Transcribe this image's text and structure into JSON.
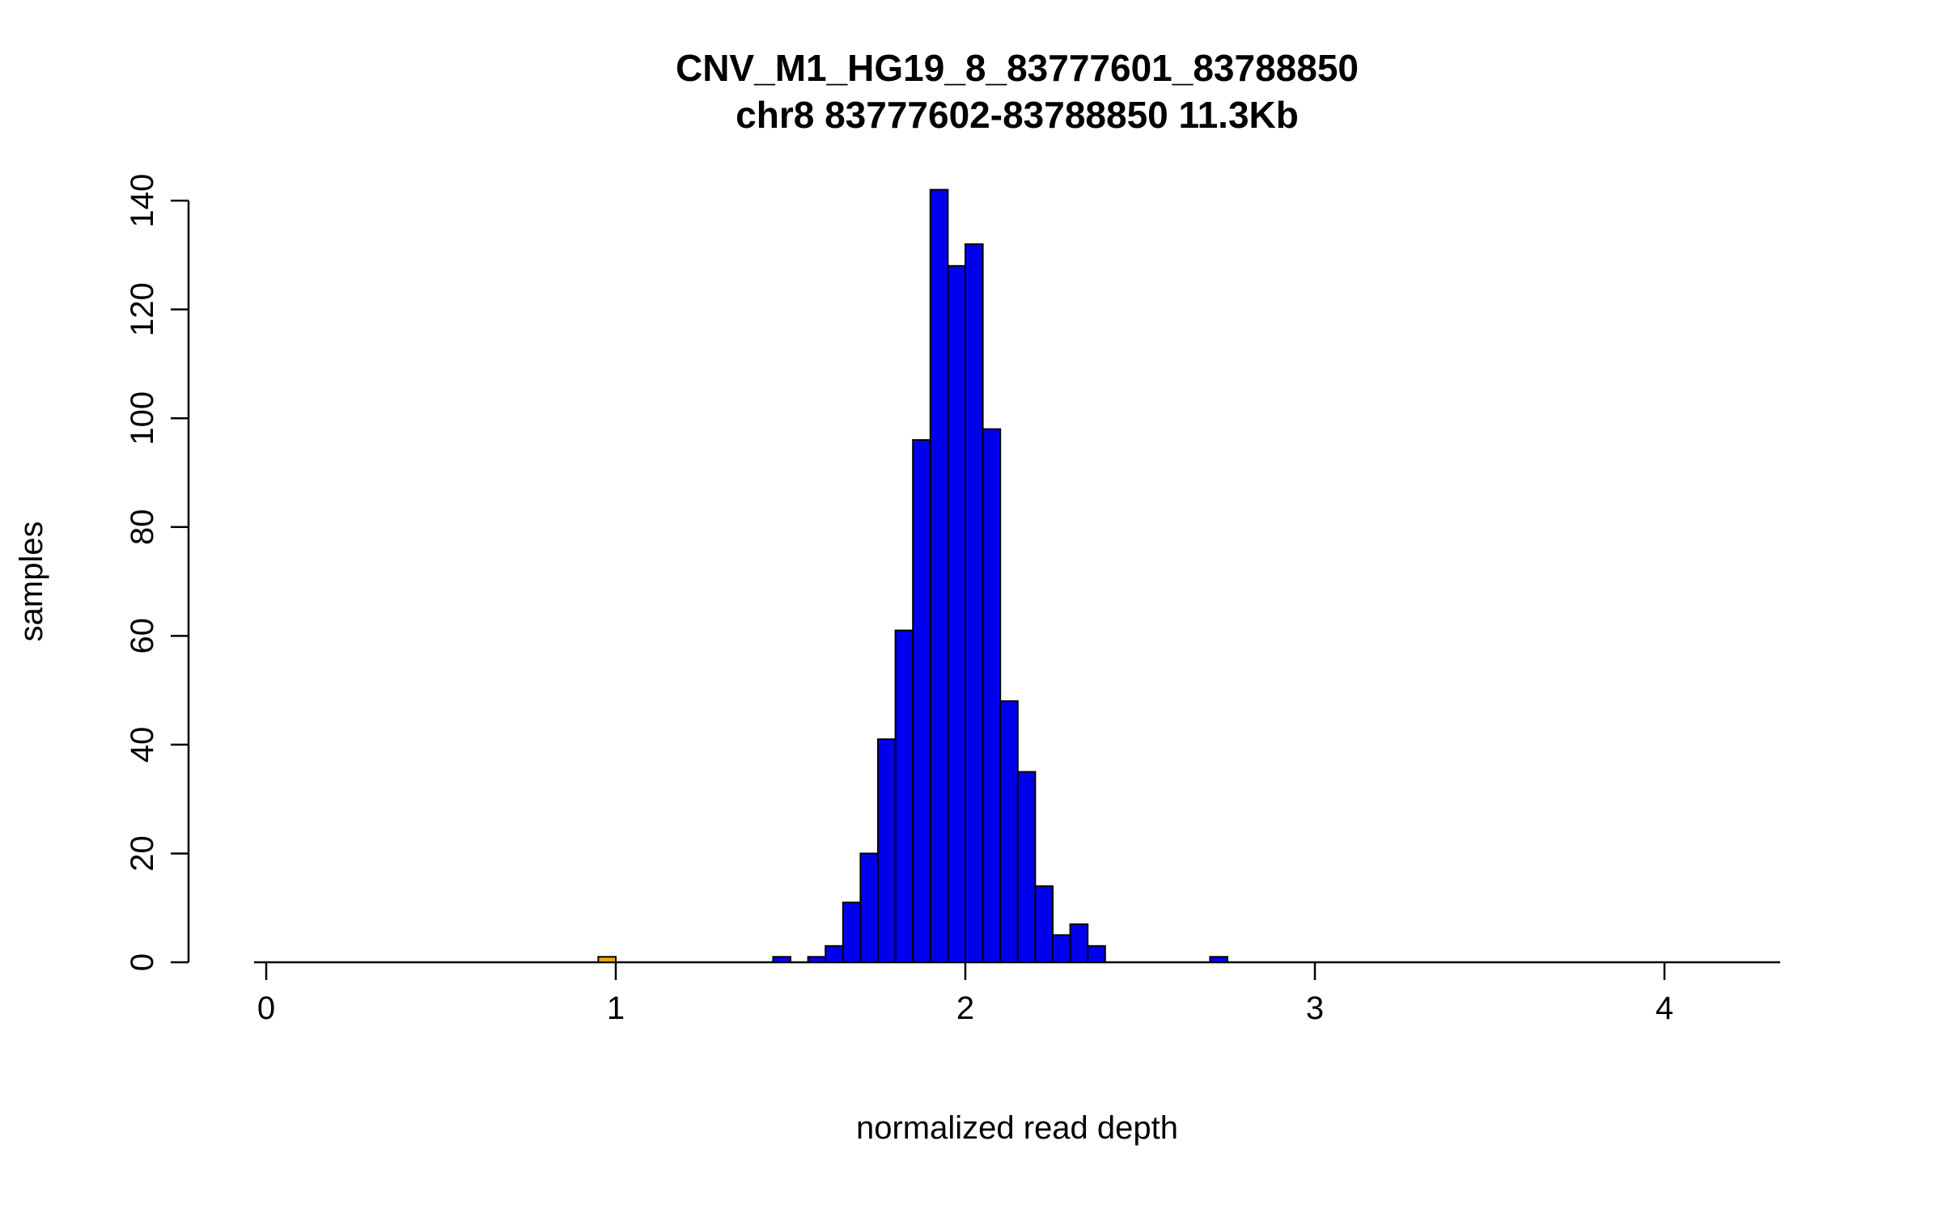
{
  "chart_data": {
    "type": "bar",
    "subtype": "histogram",
    "title": "CNV_M1_HG19_8_83777601_83788850",
    "subtitle": "chr8 83777602-83788850 11.3Kb",
    "xlabel": "normalized read depth",
    "ylabel": "samples",
    "xlim": [
      0,
      4.35
    ],
    "ylim": [
      0,
      140
    ],
    "x_ticks": [
      0,
      1,
      2,
      3,
      4
    ],
    "y_ticks": [
      0,
      20,
      40,
      60,
      80,
      100,
      120,
      140
    ],
    "grid": false,
    "legend": false,
    "bin_width": 0.05,
    "colors": {
      "bar": "#0000EE",
      "highlight_bar": "#FFA500",
      "border": "#000000"
    },
    "bars": [
      {
        "x": 0.95,
        "count": 1,
        "color": "#FFA500"
      },
      {
        "x": 1.45,
        "count": 1
      },
      {
        "x": 1.55,
        "count": 1
      },
      {
        "x": 1.6,
        "count": 3
      },
      {
        "x": 1.65,
        "count": 11
      },
      {
        "x": 1.7,
        "count": 20
      },
      {
        "x": 1.75,
        "count": 41
      },
      {
        "x": 1.8,
        "count": 61
      },
      {
        "x": 1.85,
        "count": 96
      },
      {
        "x": 1.9,
        "count": 142
      },
      {
        "x": 1.95,
        "count": 128
      },
      {
        "x": 2.0,
        "count": 132
      },
      {
        "x": 2.05,
        "count": 98
      },
      {
        "x": 2.1,
        "count": 48
      },
      {
        "x": 2.15,
        "count": 35
      },
      {
        "x": 2.2,
        "count": 14
      },
      {
        "x": 2.25,
        "count": 5
      },
      {
        "x": 2.3,
        "count": 7
      },
      {
        "x": 2.35,
        "count": 3
      },
      {
        "x": 2.7,
        "count": 1
      }
    ]
  }
}
